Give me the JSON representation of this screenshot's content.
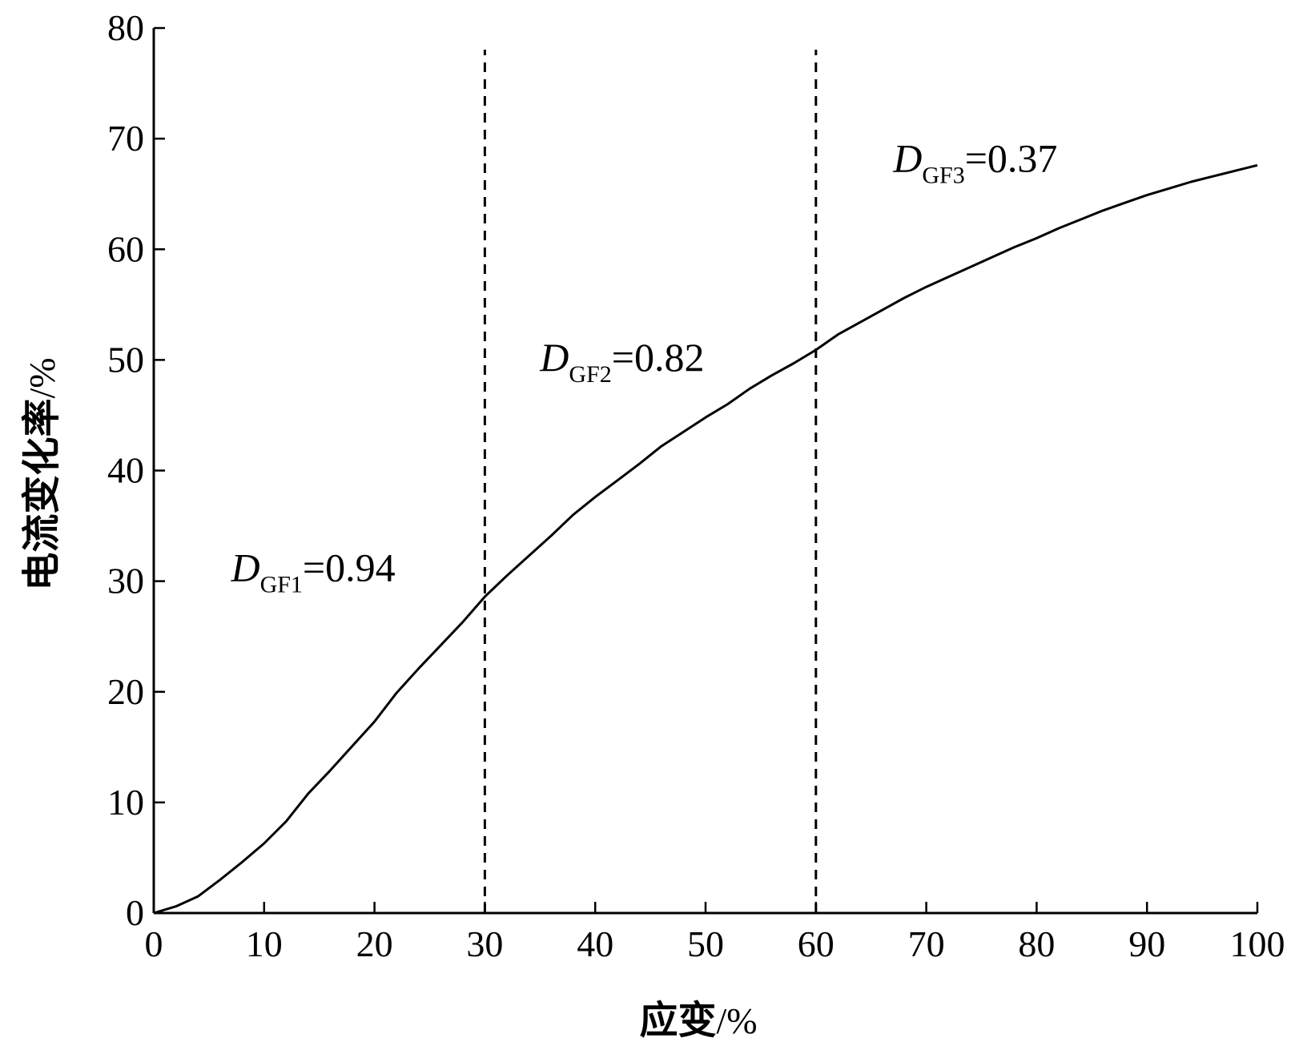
{
  "chart_data": {
    "type": "line",
    "title": "",
    "xlabel": "应变/%",
    "ylabel": "电流变化率/%",
    "xlim": [
      0,
      100
    ],
    "ylim": [
      0,
      80
    ],
    "xticks": [
      0,
      10,
      20,
      30,
      40,
      50,
      60,
      70,
      80,
      90,
      100
    ],
    "yticks": [
      0,
      10,
      20,
      30,
      40,
      50,
      60,
      70,
      80
    ],
    "xtick_labels": [
      "0",
      "10",
      "20",
      "30",
      "40",
      "50",
      "60",
      "70",
      "80",
      "90",
      "100"
    ],
    "ytick_labels": [
      "0",
      "10",
      "20",
      "30",
      "40",
      "50",
      "60",
      "70",
      "80"
    ],
    "grid": false,
    "line_color": "#000000",
    "series": [
      {
        "x": [
          0,
          2,
          4,
          6,
          8,
          10,
          12,
          14,
          16,
          18,
          20,
          22,
          24,
          26,
          28,
          30,
          32,
          34,
          36,
          38,
          40,
          42,
          44,
          46,
          48,
          50,
          52,
          54,
          56,
          58,
          60,
          62,
          64,
          66,
          68,
          70,
          72,
          74,
          76,
          78,
          80,
          82,
          84,
          86,
          88,
          90,
          92,
          94,
          96,
          98,
          100
        ],
        "y": [
          0,
          0.6,
          1.5,
          3.0,
          4.6,
          6.3,
          8.3,
          10.8,
          12.9,
          15.1,
          17.3,
          19.9,
          22.1,
          24.2,
          26.3,
          28.6,
          30.5,
          32.3,
          34.1,
          36.0,
          37.6,
          39.1,
          40.6,
          42.2,
          43.5,
          44.8,
          46.0,
          47.4,
          48.6,
          49.7,
          50.9,
          52.3,
          53.4,
          54.5,
          55.6,
          56.6,
          57.5,
          58.4,
          59.3,
          60.2,
          61.0,
          61.9,
          62.7,
          63.5,
          64.2,
          64.9,
          65.5,
          66.1,
          66.6,
          67.1,
          67.6
        ]
      }
    ],
    "vlines": [
      30,
      60
    ],
    "annotations": [
      {
        "symbol": "D",
        "subscript": "GF1",
        "value": "=0.94",
        "x": 7,
        "y": 30
      },
      {
        "symbol": "D",
        "subscript": "GF2",
        "value": "=0.82",
        "x": 35,
        "y": 49
      },
      {
        "symbol": "D",
        "subscript": "GF3",
        "value": "=0.37",
        "x": 67,
        "y": 67
      }
    ]
  }
}
